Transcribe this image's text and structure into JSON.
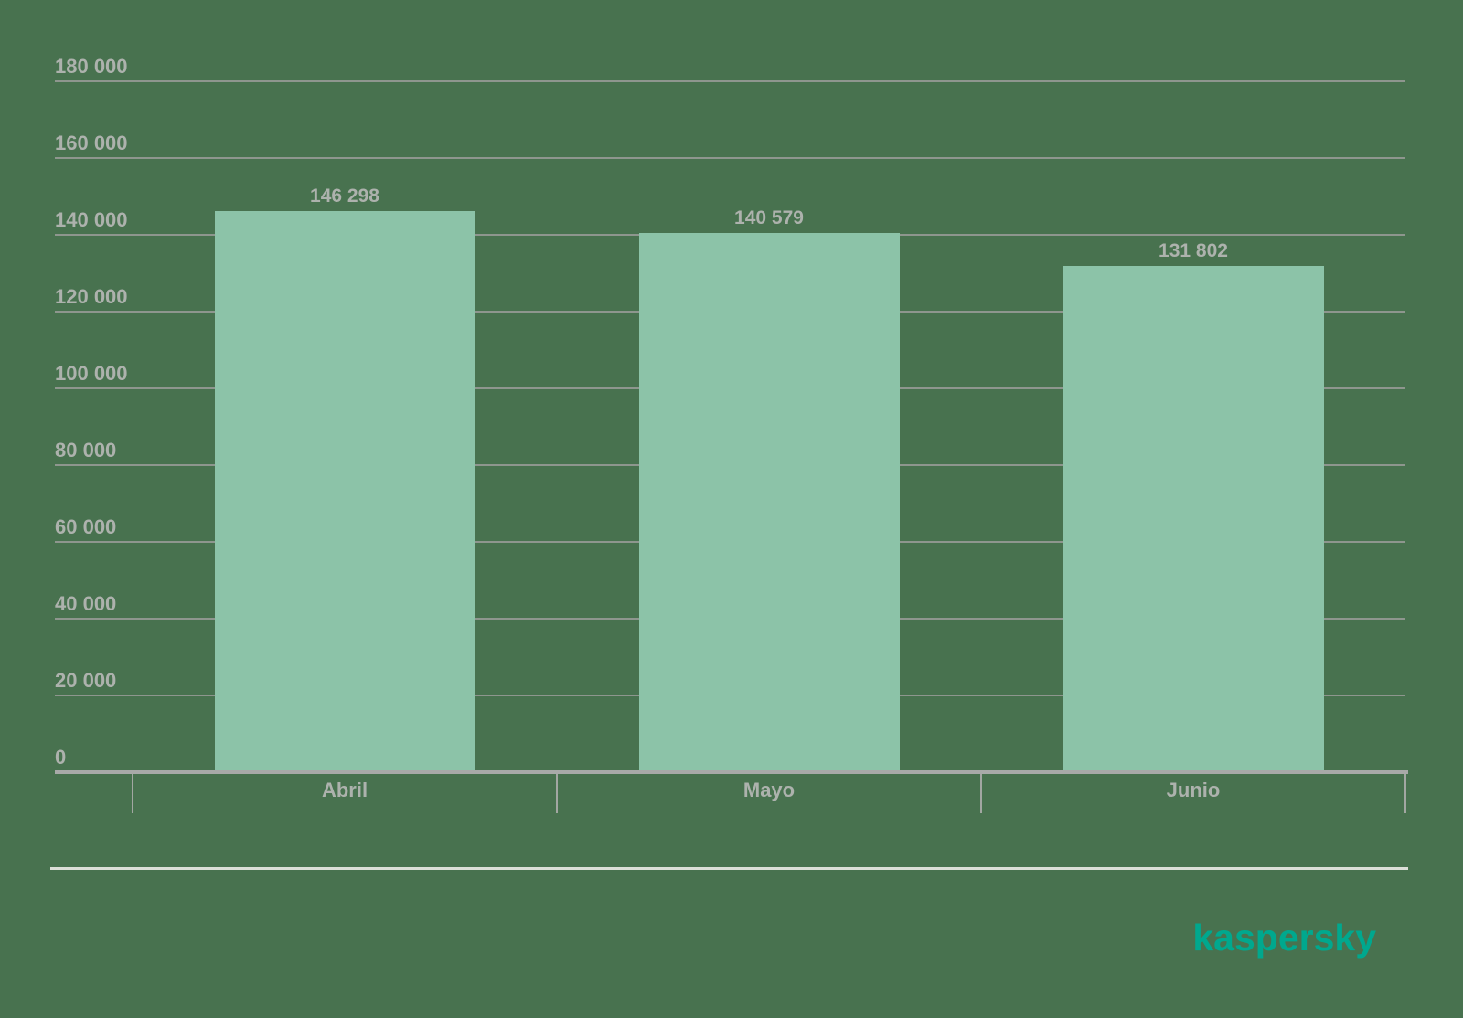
{
  "chart_data": {
    "type": "bar",
    "title": "",
    "xlabel": "",
    "ylabel": "",
    "categories": [
      "Abril",
      "Mayo",
      "Junio"
    ],
    "values": [
      146298,
      140579,
      131802
    ],
    "value_labels": [
      "146 298",
      "140 579",
      "131 802"
    ],
    "ylim": [
      0,
      180000
    ],
    "ytick_interval": 20000,
    "yticks": [
      {
        "value": 180000,
        "label": "180 000"
      },
      {
        "value": 160000,
        "label": "160 000"
      },
      {
        "value": 140000,
        "label": "140 000"
      },
      {
        "value": 120000,
        "label": "120 000"
      },
      {
        "value": 100000,
        "label": "100 000"
      },
      {
        "value": 80000,
        "label": "80 000"
      },
      {
        "value": 60000,
        "label": "60 000"
      },
      {
        "value": 40000,
        "label": "40 000"
      },
      {
        "value": 20000,
        "label": "20 000"
      },
      {
        "value": 0,
        "label": "0"
      }
    ],
    "grid": true,
    "legend": false
  },
  "branding": {
    "logo_text": "kaspersky"
  },
  "colors": {
    "background": "#48724f",
    "bar": "#8cc3a8",
    "gridline": "#8e968e",
    "axis_line": "#a8aaa8",
    "category_separator": "#a2a7a2",
    "bottom_line": "#dcdfd8",
    "label_text": "#adb2ad",
    "logo": "#00a88e"
  }
}
